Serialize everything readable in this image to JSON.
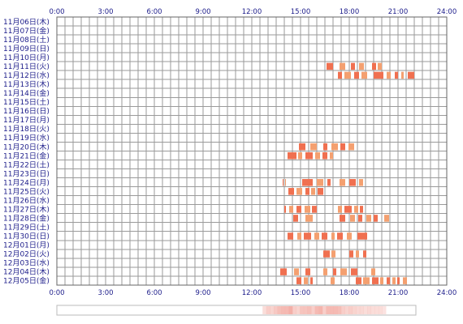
{
  "chart_data": {
    "type": "heatmap",
    "x_unit": "hour of day",
    "xlim": [
      0,
      24
    ],
    "x_ticks": [
      "0:00",
      "3:00",
      "6:00",
      "9:00",
      "12:00",
      "15:00",
      "18:00",
      "21:00",
      "24:00"
    ],
    "tick_hours": [
      0,
      3,
      6,
      9,
      12,
      15,
      18,
      21,
      24
    ],
    "grid": true,
    "colors": {
      "grid": "#9a9a9a",
      "frame": "#666666",
      "label": "#1c1c8a",
      "active": "#f07050",
      "active_light": "#f4a070",
      "summary_border": "#bbbbbb",
      "summary_fill": "#f3b0a8"
    },
    "rows": [
      {
        "label": "11月06日(木)",
        "segments": []
      },
      {
        "label": "11月07日(金)",
        "segments": []
      },
      {
        "label": "11月08日(土)",
        "segments": []
      },
      {
        "label": "11月09日(日)",
        "segments": []
      },
      {
        "label": "11月10日(月)",
        "segments": []
      },
      {
        "label": "11月11日(火)",
        "segments": [
          [
            16.6,
            17.0
          ],
          [
            17.4,
            17.75
          ],
          [
            18.1,
            18.35
          ],
          [
            18.6,
            18.9
          ],
          [
            19.4,
            19.65
          ],
          [
            19.75,
            20.0
          ]
        ]
      },
      {
        "label": "11月12日(水)",
        "segments": [
          [
            17.3,
            17.55
          ],
          [
            17.7,
            18.1
          ],
          [
            18.3,
            18.6
          ],
          [
            18.75,
            19.1
          ],
          [
            19.5,
            20.1
          ],
          [
            20.3,
            20.55
          ],
          [
            20.8,
            21.0
          ],
          [
            21.2,
            21.35
          ],
          [
            21.6,
            22.0
          ]
        ]
      },
      {
        "label": "11月13日(木)",
        "segments": []
      },
      {
        "label": "11月14日(金)",
        "segments": []
      },
      {
        "label": "11月15日(土)",
        "segments": []
      },
      {
        "label": "11月16日(日)",
        "segments": []
      },
      {
        "label": "11月17日(月)",
        "segments": []
      },
      {
        "label": "11月18日(火)",
        "segments": []
      },
      {
        "label": "11月19日(水)",
        "segments": []
      },
      {
        "label": "11月20日(木)",
        "segments": [
          [
            14.9,
            15.3
          ],
          [
            15.6,
            16.0
          ],
          [
            16.4,
            16.65
          ],
          [
            16.9,
            17.3
          ],
          [
            17.45,
            17.75
          ],
          [
            17.95,
            18.3
          ]
        ]
      },
      {
        "label": "11月21日(金)",
        "segments": [
          [
            14.2,
            14.75
          ],
          [
            14.85,
            15.1
          ],
          [
            15.3,
            15.75
          ],
          [
            15.9,
            16.2
          ],
          [
            16.35,
            16.65
          ],
          [
            16.8,
            17.0
          ]
        ]
      },
      {
        "label": "11月22日(土)",
        "segments": []
      },
      {
        "label": "11月23日(日)",
        "segments": []
      },
      {
        "label": "11月24日(月)",
        "segments": [
          [
            13.9,
            13.95
          ],
          [
            14.05,
            14.1
          ],
          [
            15.1,
            15.75
          ],
          [
            16.0,
            16.4
          ],
          [
            16.65,
            16.85
          ],
          [
            17.4,
            17.75
          ],
          [
            18.0,
            18.4
          ],
          [
            18.6,
            18.85
          ]
        ]
      },
      {
        "label": "11月25日(火)",
        "segments": [
          [
            14.25,
            14.6
          ],
          [
            14.75,
            15.1
          ],
          [
            15.3,
            15.55
          ],
          [
            15.65,
            15.9
          ],
          [
            16.05,
            16.4
          ]
        ]
      },
      {
        "label": "11月26日(水)",
        "segments": []
      },
      {
        "label": "11月27日(木)",
        "segments": [
          [
            14.0,
            14.1
          ],
          [
            14.3,
            14.55
          ],
          [
            14.75,
            15.05
          ],
          [
            15.25,
            15.6
          ],
          [
            15.7,
            16.0
          ],
          [
            17.3,
            17.55
          ],
          [
            17.7,
            18.15
          ],
          [
            18.3,
            18.55
          ],
          [
            18.65,
            18.85
          ]
        ]
      },
      {
        "label": "11月28日(金)",
        "segments": [
          [
            14.55,
            14.85
          ],
          [
            15.3,
            15.75
          ],
          [
            17.4,
            17.75
          ],
          [
            18.05,
            18.35
          ],
          [
            18.55,
            18.8
          ],
          [
            19.05,
            19.35
          ],
          [
            19.5,
            19.75
          ],
          [
            20.15,
            20.45
          ]
        ]
      },
      {
        "label": "11月29日(土)",
        "segments": []
      },
      {
        "label": "11月30日(日)",
        "segments": [
          [
            14.2,
            14.55
          ],
          [
            14.8,
            15.05
          ],
          [
            15.2,
            15.65
          ],
          [
            15.85,
            16.15
          ],
          [
            16.3,
            16.65
          ],
          [
            16.9,
            17.1
          ],
          [
            17.25,
            17.6
          ],
          [
            17.85,
            18.15
          ],
          [
            18.5,
            19.1
          ]
        ]
      },
      {
        "label": "12月01日(月)",
        "segments": []
      },
      {
        "label": "12月02日(火)",
        "segments": [
          [
            16.4,
            16.8
          ],
          [
            16.9,
            17.15
          ],
          [
            18.0,
            18.25
          ],
          [
            18.4,
            18.6
          ],
          [
            18.85,
            19.05
          ]
        ]
      },
      {
        "label": "12月03日(水)",
        "segments": []
      },
      {
        "label": "12月04日(木)",
        "segments": [
          [
            13.75,
            14.15
          ],
          [
            14.6,
            14.9
          ],
          [
            15.3,
            15.6
          ],
          [
            16.4,
            16.65
          ],
          [
            17.0,
            17.2
          ],
          [
            17.45,
            17.85
          ],
          [
            18.1,
            18.5
          ],
          [
            19.35,
            19.6
          ]
        ]
      },
      {
        "label": "12月05日(金)",
        "segments": [
          [
            14.75,
            15.05
          ],
          [
            15.2,
            15.45
          ],
          [
            15.6,
            15.75
          ],
          [
            16.85,
            17.1
          ],
          [
            18.4,
            18.75
          ],
          [
            18.85,
            19.25
          ],
          [
            19.4,
            19.8
          ],
          [
            19.9,
            20.1
          ],
          [
            20.3,
            20.5
          ],
          [
            20.65,
            20.85
          ],
          [
            20.95,
            21.1
          ],
          [
            21.3,
            21.55
          ]
        ]
      }
    ]
  }
}
